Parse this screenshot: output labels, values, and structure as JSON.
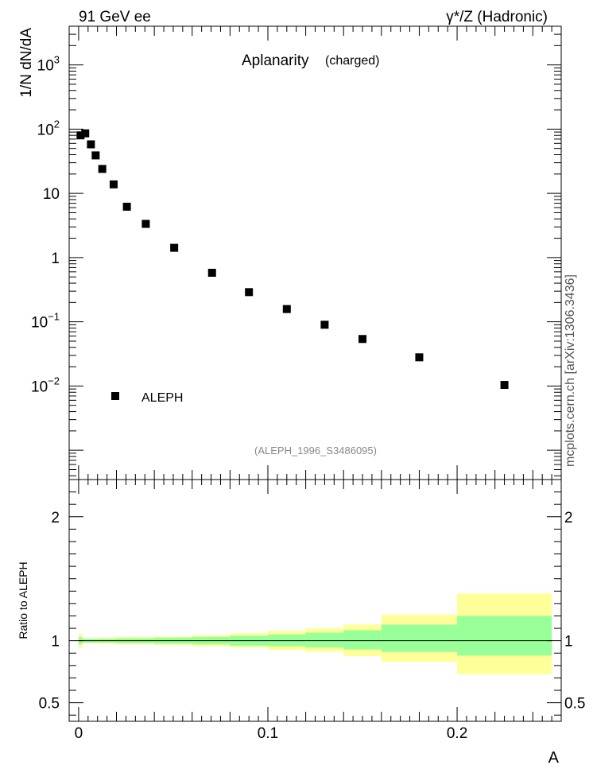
{
  "header": {
    "left": "91 GeV ee",
    "right": "γ*/Z (Hadronic)"
  },
  "watermark": "mcplots.cern.ch [arXiv:1306.3436]",
  "colors": {
    "marker": "#000000",
    "band_inner": "#99ff99",
    "band_outer": "#ffff99",
    "watermark": "#555555",
    "analysis_id": "#888888"
  },
  "chart_data": [
    {
      "type": "scatter",
      "panel": "main",
      "title": "Aplanarity",
      "subtitle": "(charged)",
      "ylabel": "1/N dN/dA",
      "yscale": "log",
      "ylim": [
        0.00035,
        4000
      ],
      "xlim": [
        -0.005,
        0.255
      ],
      "ytick_labels": [
        {
          "value": 1000,
          "base": "10",
          "exp": "3"
        },
        {
          "value": 100,
          "base": "10",
          "exp": "2"
        },
        {
          "value": 10,
          "base": "10",
          "exp": ""
        },
        {
          "value": 1,
          "base": "1",
          "exp": ""
        },
        {
          "value": 0.1,
          "base": "10",
          "exp": "−1"
        },
        {
          "value": 0.01,
          "base": "10",
          "exp": "−2"
        }
      ],
      "legend": {
        "label": "ALEPH",
        "position": "bottom-left"
      },
      "analysis_id": "(ALEPH_1996_S3486095)",
      "series": [
        {
          "name": "ALEPH",
          "x": [
            0.001,
            0.0035,
            0.0065,
            0.009,
            0.0125,
            0.0185,
            0.0255,
            0.0355,
            0.0505,
            0.0705,
            0.09,
            0.11,
            0.13,
            0.15,
            0.18,
            0.225
          ],
          "y": [
            80,
            86,
            58,
            39,
            24,
            13.8,
            6.2,
            3.35,
            1.42,
            0.58,
            0.29,
            0.158,
            0.09,
            0.054,
            0.028,
            0.0104
          ]
        }
      ]
    },
    {
      "type": "area",
      "panel": "ratio",
      "ylabel": "Ratio to ALEPH",
      "ylim": [
        0.35,
        2.3
      ],
      "xlim": [
        -0.005,
        0.255
      ],
      "xlabel": "A",
      "xtick_labels": [
        "0",
        "0.1",
        "0.2"
      ],
      "xticks": [
        0,
        0.1,
        0.2
      ],
      "ytick_labels": [
        "2",
        "1",
        "0.5"
      ],
      "yticks": [
        2,
        1,
        0.5
      ],
      "reference_line": 1,
      "bins": [
        {
          "lo": 0.0,
          "hi": 0.002,
          "inner": [
            0.97,
            1.03
          ],
          "outer": [
            0.94,
            1.06
          ]
        },
        {
          "lo": 0.002,
          "hi": 0.005,
          "inner": [
            0.985,
            1.015
          ],
          "outer": [
            0.98,
            1.02
          ]
        },
        {
          "lo": 0.005,
          "hi": 0.01,
          "inner": [
            0.985,
            1.015
          ],
          "outer": [
            0.98,
            1.02
          ]
        },
        {
          "lo": 0.01,
          "hi": 0.02,
          "inner": [
            0.985,
            1.015
          ],
          "outer": [
            0.975,
            1.025
          ]
        },
        {
          "lo": 0.02,
          "hi": 0.03,
          "inner": [
            0.98,
            1.02
          ],
          "outer": [
            0.97,
            1.03
          ]
        },
        {
          "lo": 0.03,
          "hi": 0.04,
          "inner": [
            0.98,
            1.02
          ],
          "outer": [
            0.97,
            1.03
          ]
        },
        {
          "lo": 0.04,
          "hi": 0.06,
          "inner": [
            0.975,
            1.025
          ],
          "outer": [
            0.965,
            1.035
          ]
        },
        {
          "lo": 0.06,
          "hi": 0.08,
          "inner": [
            0.97,
            1.03
          ],
          "outer": [
            0.955,
            1.045
          ]
        },
        {
          "lo": 0.08,
          "hi": 0.1,
          "inner": [
            0.96,
            1.04
          ],
          "outer": [
            0.945,
            1.06
          ]
        },
        {
          "lo": 0.1,
          "hi": 0.12,
          "inner": [
            0.955,
            1.05
          ],
          "outer": [
            0.925,
            1.08
          ]
        },
        {
          "lo": 0.12,
          "hi": 0.14,
          "inner": [
            0.945,
            1.065
          ],
          "outer": [
            0.91,
            1.1
          ]
        },
        {
          "lo": 0.14,
          "hi": 0.16,
          "inner": [
            0.93,
            1.085
          ],
          "outer": [
            0.875,
            1.13
          ]
        },
        {
          "lo": 0.16,
          "hi": 0.2,
          "inner": [
            0.91,
            1.13
          ],
          "outer": [
            0.83,
            1.21
          ]
        },
        {
          "lo": 0.2,
          "hi": 0.25,
          "inner": [
            0.88,
            1.2
          ],
          "outer": [
            0.73,
            1.38
          ]
        }
      ]
    }
  ]
}
